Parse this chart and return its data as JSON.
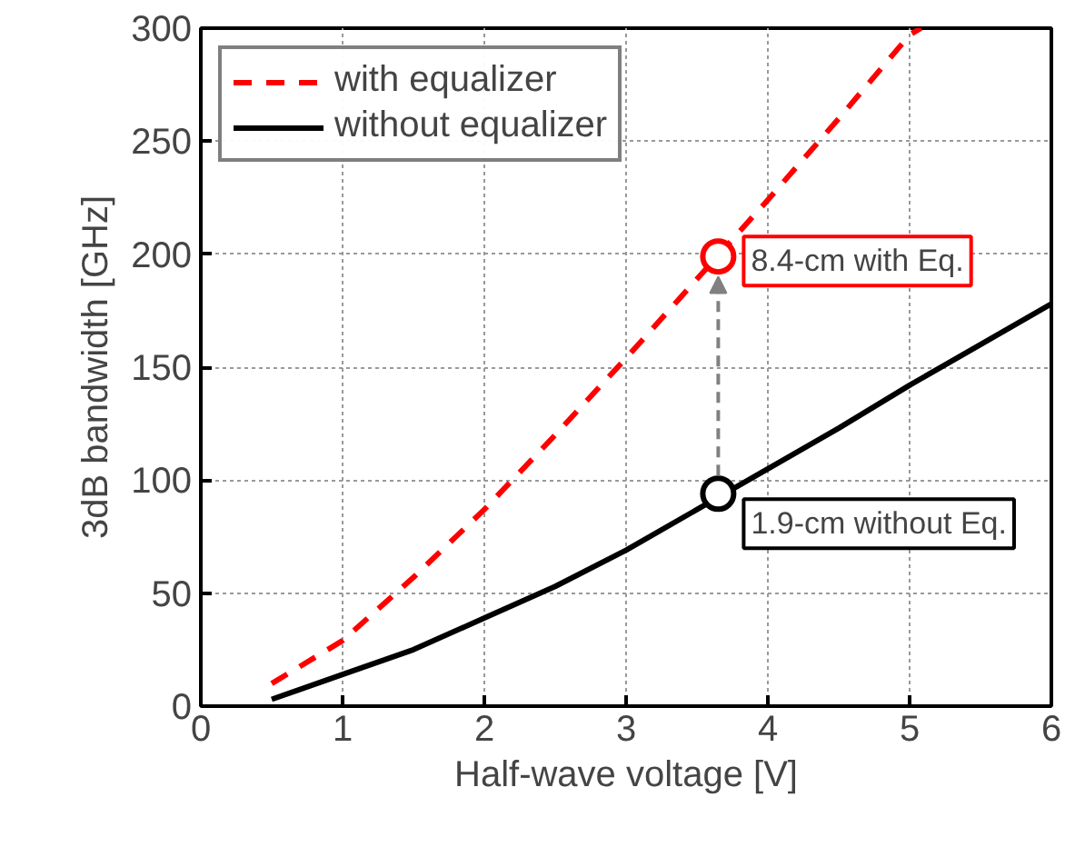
{
  "chart_data": {
    "type": "line",
    "xlabel": "Half-wave voltage [V]",
    "ylabel": "3dB bandwidth [GHz]",
    "xlim": [
      0,
      6
    ],
    "ylim": [
      0,
      300
    ],
    "xticks": [
      0,
      1,
      2,
      3,
      4,
      5,
      6
    ],
    "yticks": [
      0,
      50,
      100,
      150,
      200,
      250,
      300
    ],
    "grid": true,
    "legend": "top left",
    "series": [
      {
        "name": "with equalizer",
        "color": "#ff0000",
        "line_style": "dashed",
        "x": [
          0.5,
          1,
          1.5,
          2,
          2.5,
          3,
          3.5,
          4,
          4.5,
          5,
          5.08
        ],
        "values": [
          10,
          29,
          57,
          87,
          120,
          154,
          189,
          224,
          260,
          297,
          300
        ]
      },
      {
        "name": "without equalizer",
        "color": "#000000",
        "line_style": "solid",
        "x": [
          0.5,
          1,
          1.5,
          2,
          2.5,
          3,
          3.5,
          4,
          4.5,
          5,
          5.5,
          6
        ],
        "values": [
          3,
          14,
          25,
          39,
          53,
          69,
          87,
          105,
          123,
          142,
          160,
          178
        ]
      },
      {
        "type": "scatter",
        "marker": "circle",
        "color": "#ff0000",
        "x": [
          3.65
        ],
        "values": [
          199
        ]
      },
      {
        "type": "scatter",
        "marker": "circle",
        "color": "#000000",
        "x": [
          3.65
        ],
        "values": [
          94
        ]
      }
    ],
    "annotations": [
      {
        "text": "8.4-cm with Eq.",
        "x": 3.65,
        "y": 199
      },
      {
        "text": "1.9-cm without Eq.",
        "x": 3.65,
        "y": 94
      }
    ]
  }
}
